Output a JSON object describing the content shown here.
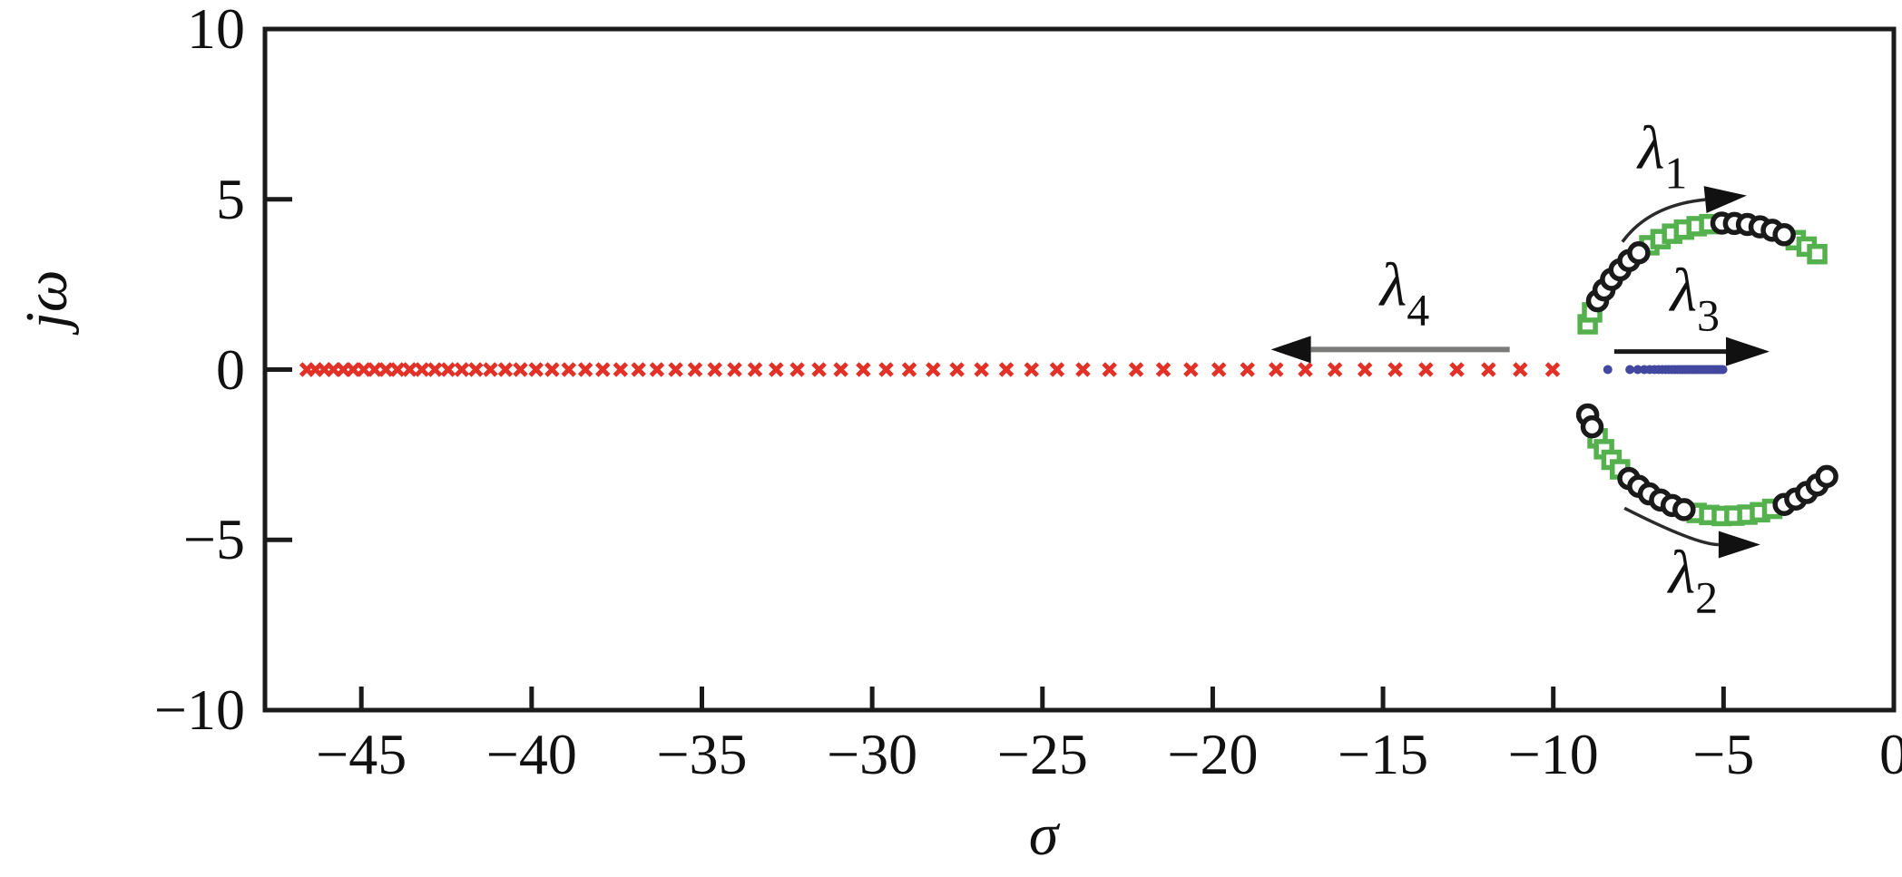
{
  "figure": {
    "description": "Eigenvalue locus plot in the complex plane",
    "background": "#ffffff"
  },
  "chart_data": {
    "type": "scatter",
    "title": "",
    "xlabel": "σ",
    "ylabel": "jω",
    "xlim": [
      -47.83,
      0
    ],
    "ylim": [
      -10,
      10
    ],
    "grid": false,
    "legend": "none",
    "axis_color": "#1a1a1a",
    "xticks": {
      "values": [
        -45,
        -40,
        -35,
        -30,
        -25,
        -20,
        -15,
        -10,
        -5,
        0
      ],
      "labels": [
        "−45",
        "−40",
        "−35",
        "−30",
        "−25",
        "−20",
        "−15",
        "−10",
        "−5",
        "0"
      ]
    },
    "yticks": {
      "values": [
        10,
        5,
        0,
        -5,
        -10
      ],
      "labels": [
        "10",
        "5",
        "0",
        "−5",
        "−10"
      ]
    },
    "series": [
      {
        "name": "lambda4-real-axis-trajectory",
        "marker": "x",
        "color": "#e23228",
        "size": 13,
        "y_value": 0,
        "x_values": [
          -46.6,
          -46.35,
          -46.09,
          -45.82,
          -45.53,
          -45.24,
          -44.93,
          -44.61,
          -44.28,
          -43.94,
          -43.58,
          -43.22,
          -42.84,
          -42.45,
          -42.05,
          -41.64,
          -41.21,
          -40.77,
          -40.33,
          -39.87,
          -39.4,
          -38.91,
          -38.42,
          -37.91,
          -37.39,
          -36.86,
          -36.32,
          -35.77,
          -35.2,
          -34.62,
          -34.04,
          -33.44,
          -32.82,
          -32.2,
          -31.56,
          -30.92,
          -30.26,
          -29.59,
          -28.91,
          -28.21,
          -27.51,
          -26.79,
          -26.06,
          -25.32,
          -24.57,
          -23.81,
          -23.03,
          -22.25,
          -21.45,
          -20.64,
          -19.82,
          -18.98,
          -18.14,
          -17.28,
          -16.41,
          -15.53,
          -14.64,
          -13.74,
          -12.83,
          -11.9,
          -10.97,
          -10.02
        ]
      },
      {
        "name": "lambda3-real-axis-trajectory",
        "marker": "dot",
        "color": "#4247a0",
        "size": 10,
        "y_value": 0,
        "x_values": [
          -8.4,
          -7.75,
          -7.52,
          -7.33,
          -7.17,
          -7.03,
          -6.91,
          -6.8,
          -6.7,
          -6.61,
          -6.52,
          -6.44,
          -6.36,
          -6.28,
          -6.21,
          -6.14,
          -6.07,
          -6.0,
          -5.93,
          -5.86,
          -5.79,
          -5.72,
          -5.65,
          -5.58,
          -5.51,
          -5.44,
          -5.37,
          -5.3,
          -5.23,
          -5.16,
          -5.09,
          -5.02
        ]
      },
      {
        "name": "upper-branch-green-squares",
        "marker": "open-square",
        "color": "#55b14e",
        "size": 17,
        "points": [
          [
            -8.99,
            1.33
          ],
          [
            -8.86,
            1.68
          ],
          [
            -7.18,
            3.65
          ],
          [
            -6.85,
            3.83
          ],
          [
            -6.51,
            3.99
          ],
          [
            -6.16,
            4.11
          ],
          [
            -5.79,
            4.21
          ],
          [
            -5.42,
            4.27
          ],
          [
            -2.88,
            3.8
          ],
          [
            -2.56,
            3.61
          ],
          [
            -2.25,
            3.39
          ]
        ]
      },
      {
        "name": "lower-branch-green-squares",
        "marker": "open-square",
        "color": "#55b14e",
        "size": 17,
        "points": [
          [
            -8.7,
            -2.02
          ],
          [
            -8.51,
            -2.34
          ],
          [
            -8.29,
            -2.65
          ],
          [
            -8.04,
            -2.93
          ],
          [
            -5.79,
            -4.21
          ],
          [
            -5.42,
            -4.27
          ],
          [
            -5.05,
            -4.3
          ],
          [
            -4.68,
            -4.29
          ],
          [
            -4.3,
            -4.26
          ],
          [
            -3.93,
            -4.19
          ],
          [
            -3.57,
            -4.09
          ]
        ]
      },
      {
        "name": "upper-branch-black-circles",
        "marker": "open-circle",
        "color": "#1a1a1a",
        "size": 20,
        "points": [
          [
            -8.7,
            2.02
          ],
          [
            -8.51,
            2.34
          ],
          [
            -8.29,
            2.65
          ],
          [
            -8.04,
            2.93
          ],
          [
            -7.78,
            3.2
          ],
          [
            -7.49,
            3.43
          ],
          [
            -5.05,
            4.3
          ],
          [
            -4.68,
            4.29
          ],
          [
            -4.3,
            4.26
          ],
          [
            -3.93,
            4.19
          ],
          [
            -3.57,
            4.09
          ],
          [
            -3.22,
            3.96
          ]
        ]
      },
      {
        "name": "lower-branch-black-circles",
        "marker": "open-circle",
        "color": "#1a1a1a",
        "size": 20,
        "points": [
          [
            -8.99,
            -1.33
          ],
          [
            -8.86,
            -1.68
          ],
          [
            -7.78,
            -3.2
          ],
          [
            -7.49,
            -3.43
          ],
          [
            -7.18,
            -3.65
          ],
          [
            -6.85,
            -3.83
          ],
          [
            -6.51,
            -3.99
          ],
          [
            -6.16,
            -4.11
          ],
          [
            -3.22,
            -3.96
          ],
          [
            -2.88,
            -3.8
          ],
          [
            -2.56,
            -3.61
          ],
          [
            -2.25,
            -3.39
          ],
          [
            -1.97,
            -3.14
          ]
        ]
      }
    ],
    "annotations": [
      {
        "id": "lambda1",
        "label": "λ",
        "sub": "1",
        "x": -6.79,
        "y": 6.26,
        "arrow": {
          "style": "curved",
          "from": [
            -7.97,
            3.75
          ],
          "ctrl": [
            -7.18,
            4.83
          ],
          "to": [
            -4.32,
            5.11
          ],
          "line_color": "#2b2b2b",
          "line_width": 3.5,
          "head_length": 46,
          "head_halfwidth": 15
        }
      },
      {
        "id": "lambda2",
        "label": "λ",
        "sub": "2",
        "x": -5.89,
        "y": -6.2,
        "arrow": {
          "style": "curved",
          "from": [
            -7.91,
            -4.07
          ],
          "ctrl": [
            -5.81,
            -5.14
          ],
          "to": [
            -3.92,
            -5.14
          ],
          "line_color": "#2b2b2b",
          "line_width": 3.5,
          "head_length": 46,
          "head_halfwidth": 15
        }
      },
      {
        "id": "lambda3",
        "label": "λ",
        "sub": "3",
        "x": -5.84,
        "y": 2.1,
        "arrow": {
          "style": "straight",
          "from": [
            -8.21,
            0.53
          ],
          "to": [
            -3.65,
            0.53
          ],
          "line_color": "#1a1a1a",
          "line_width": 5,
          "head_length": 48,
          "head_halfwidth": 16
        }
      },
      {
        "id": "lambda4",
        "label": "λ",
        "sub": "4",
        "x": -14.36,
        "y": 2.26,
        "arrow": {
          "style": "straight",
          "from": [
            -11.28,
            0.59
          ],
          "to": [
            -18.29,
            0.59
          ],
          "line_color": "#7b7b79",
          "line_width": 6,
          "head_length": 44,
          "head_halfwidth": 15
        }
      }
    ]
  }
}
